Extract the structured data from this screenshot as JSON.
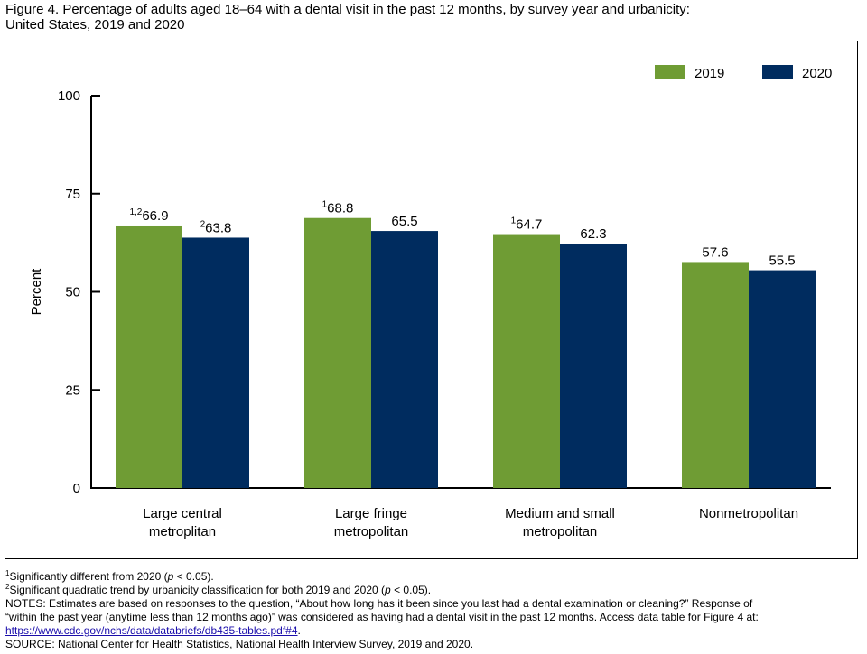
{
  "figure": {
    "title_line1": "Figure 4. Percentage of adults aged 18–64 with a dental visit in the past 12 months, by survey year and urbanicity:",
    "title_line2": "United States, 2019 and 2020"
  },
  "chart_data": {
    "type": "bar",
    "ylabel": "Percent",
    "ylim": [
      0,
      100
    ],
    "yticks": [
      0,
      25,
      50,
      75,
      100
    ],
    "grid": false,
    "legend_position": "top-right",
    "categories": [
      [
        "Large central",
        "metroplitan"
      ],
      [
        "Large fringe",
        "metropolitan"
      ],
      [
        "Medium and small",
        "metropolitan"
      ],
      [
        "Nonmetropolitan"
      ]
    ],
    "series": [
      {
        "name": "2019",
        "color": "#6f9c34",
        "values": [
          66.9,
          68.8,
          64.7,
          57.6
        ],
        "label_superscripts": [
          "1,2",
          "1",
          "1",
          ""
        ]
      },
      {
        "name": "2020",
        "color": "#002c5f",
        "values": [
          63.8,
          65.5,
          62.3,
          55.5
        ],
        "label_superscripts": [
          "2",
          "",
          "",
          ""
        ]
      }
    ]
  },
  "footnotes": {
    "note1_sup": "1",
    "note1_text": "Significantly different from 2020 (",
    "note1_p": "p",
    "note1_tail": " < 0.05).",
    "note2_sup": "2",
    "note2_text": "Significant quadratic trend by urbanicity classification for both 2019 and 2020 (",
    "note2_p": "p",
    "note2_tail": " < 0.05).",
    "notes_line1": "NOTES: Estimates are based on responses to the question, “About how long has it been since you last had a dental examination or cleaning?” Response of",
    "notes_line2": "“within the past year (anytime less than 12 months ago)” was considered as having had a dental visit in the past 12 months. Access data table for Figure 4 at:",
    "link_text": "https://www.cdc.gov/nchs/data/databriefs/db435-tables.pdf#4",
    "link_tail": ".",
    "source": "SOURCE: National Center for Health Statistics, National Health Interview Survey, 2019 and 2020."
  }
}
